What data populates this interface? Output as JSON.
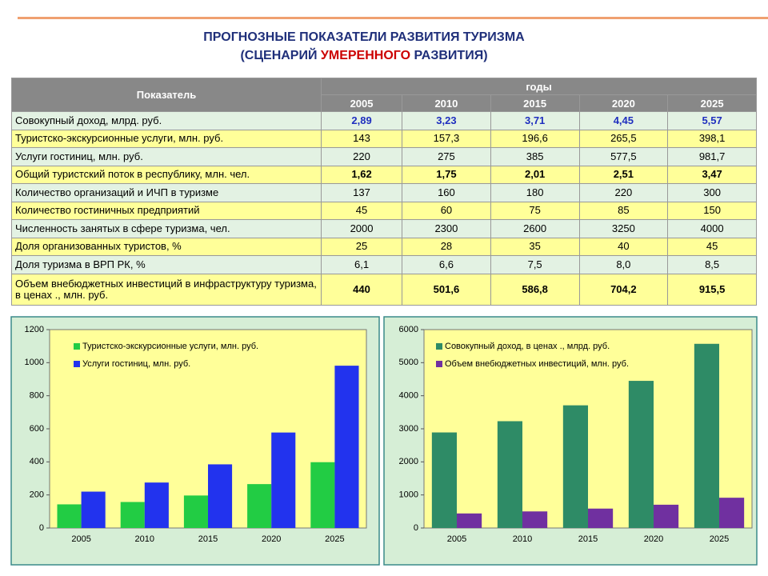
{
  "title": {
    "line1": "ПРОГНОЗНЫЕ ПОКАЗАТЕЛИ РАЗВИТИЯ ТУРИЗМА",
    "line2_start": "(СЦЕНАРИЙ ",
    "line2_highlight": "УМЕРЕННОГО",
    "line2_end": " РАЗВИТИЯ)"
  },
  "table": {
    "header": "Показатель",
    "years_header": "годы",
    "years": [
      "2005",
      "2010",
      "2015",
      "2020",
      "2025"
    ],
    "rows": [
      {
        "label": "Совокупный доход, млрд. руб.",
        "cells": [
          "2,89",
          "3,23",
          "3,71",
          "4,45",
          "5,57"
        ]
      },
      {
        "label": "Туристско-экскурсионные услуги, млн. руб.",
        "cells": [
          "143",
          "157,3",
          "196,6",
          "265,5",
          "398,1"
        ]
      },
      {
        "label": "Услуги гостиниц, млн. руб.",
        "cells": [
          "220",
          "275",
          "385",
          "577,5",
          "981,7"
        ]
      },
      {
        "label": "Общий туристский поток в республику, млн. чел.",
        "cells": [
          "1,62",
          "1,75",
          "2,01",
          "2,51",
          "3,47"
        ]
      },
      {
        "label": "Количество организаций и ИЧП в туризме",
        "cells": [
          "137",
          "160",
          "180",
          "220",
          "300"
        ]
      },
      {
        "label": "Количество гостиничных предприятий",
        "cells": [
          "45",
          "60",
          "75",
          "85",
          "150"
        ]
      },
      {
        "label": "Численность занятых в сфере туризма, чел.",
        "cells": [
          "2000",
          "2300",
          "2600",
          "3250",
          "4000"
        ]
      },
      {
        "label": "Доля организованных туристов, %",
        "cells": [
          "25",
          "28",
          "35",
          "40",
          "45"
        ]
      },
      {
        "label": "Доля туризма в ВРП РК, %",
        "cells": [
          "6,1",
          "6,6",
          "7,5",
          "8,0",
          "8,5"
        ]
      },
      {
        "label": "Объем внебюджетных инвестиций в инфраструктуру туризма, в ценах ., млн. руб.",
        "cells": [
          "440",
          "501,6",
          "586,8",
          "704,2",
          "915,5"
        ]
      }
    ]
  },
  "chart_data": [
    {
      "type": "bar",
      "categories": [
        "2005",
        "2010",
        "2015",
        "2020",
        "2025"
      ],
      "series": [
        {
          "name": "Туристско-экскурсионные услуги, млн. руб.",
          "color": "#22cc44",
          "values": [
            143,
            157.3,
            196.6,
            265.5,
            398.1
          ]
        },
        {
          "name": "Услуги гостиниц, млн. руб.",
          "color": "#2233ee",
          "values": [
            220,
            275,
            385,
            577.5,
            981.7
          ]
        }
      ],
      "ylim": [
        0,
        1200
      ],
      "yticks": [
        0,
        200,
        400,
        600,
        800,
        1000,
        1200
      ],
      "legend": "upper-left"
    },
    {
      "type": "bar",
      "categories": [
        "2005",
        "2010",
        "2015",
        "2020",
        "2025"
      ],
      "series": [
        {
          "name": "Совокупный доход, в ценах ., млрд. руб.",
          "color": "#2e8b66",
          "values": [
            2890,
            3230,
            3710,
            4450,
            5570
          ]
        },
        {
          "name": "Объем внебюджетных инвестиций, млн. руб.",
          "color": "#7030a0",
          "values": [
            440,
            501.6,
            586.8,
            704.2,
            915.5
          ]
        }
      ],
      "ylim": [
        0,
        6000
      ],
      "yticks": [
        0,
        1000,
        2000,
        3000,
        4000,
        5000,
        6000
      ],
      "legend": "upper-left"
    }
  ]
}
